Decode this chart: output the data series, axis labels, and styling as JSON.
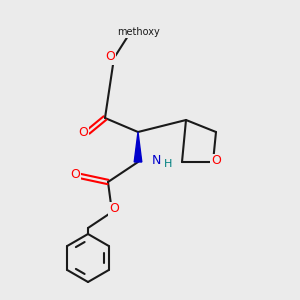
{
  "background_color": "#ebebeb",
  "bond_color": "#1a1a1a",
  "oxygen_color": "#ff0000",
  "nitrogen_color": "#0000cc",
  "hydrogen_color": "#008080",
  "methoxy_label": "methoxy",
  "oxetane_O_label": "O",
  "N_label": "N",
  "H_label": "H",
  "cbz_O1_label": "O",
  "cbz_O2_label": "O"
}
